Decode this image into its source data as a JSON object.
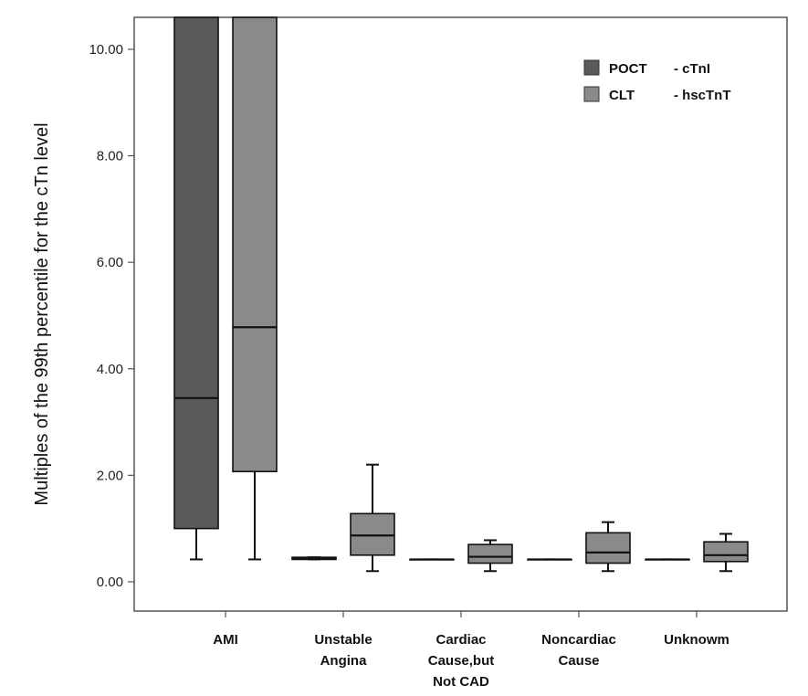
{
  "chart_data": {
    "type": "boxplot",
    "title": "",
    "xlabel": "",
    "ylabel": "Multiples of the 99th percentile for the cTn level",
    "ylim": [
      -0.55,
      10.6
    ],
    "yticks": [
      0,
      2,
      4,
      6,
      8,
      10
    ],
    "ytick_labels": [
      "0.00",
      "2.00",
      "4.00",
      "6.00",
      "8.00",
      "10.00"
    ],
    "categories": [
      [
        "AMI"
      ],
      [
        "Unstable",
        "Angina"
      ],
      [
        "Cardiac",
        "Cause,but",
        "Not CAD"
      ],
      [
        "Noncardiac",
        "Cause"
      ],
      [
        "Unknowm"
      ]
    ],
    "series": [
      {
        "name": "POCT",
        "assay": "- cTnI",
        "color": "#5a5a5a",
        "boxes": [
          {
            "whisker_low": 0.42,
            "q1": 1.0,
            "median": 3.45,
            "q3": 10.6,
            "whisker_high": null
          },
          {
            "whisker_low": 0.42,
            "q1": 0.42,
            "median": 0.44,
            "q3": 0.46,
            "whisker_high": 0.46
          },
          {
            "whisker_low": 0.42,
            "q1": 0.42,
            "median": 0.42,
            "q3": 0.42,
            "whisker_high": 0.42
          },
          {
            "whisker_low": 0.42,
            "q1": 0.42,
            "median": 0.42,
            "q3": 0.42,
            "whisker_high": 0.42
          },
          {
            "whisker_low": 0.42,
            "q1": 0.42,
            "median": 0.42,
            "q3": 0.42,
            "whisker_high": 0.42
          }
        ]
      },
      {
        "name": "CLT",
        "assay": "- hscTnT",
        "color": "#8a8a8a",
        "boxes": [
          {
            "whisker_low": 0.42,
            "q1": 2.07,
            "median": 4.78,
            "q3": 10.6,
            "whisker_high": null
          },
          {
            "whisker_low": 0.2,
            "q1": 0.5,
            "median": 0.87,
            "q3": 1.28,
            "whisker_high": 2.2
          },
          {
            "whisker_low": 0.2,
            "q1": 0.35,
            "median": 0.47,
            "q3": 0.7,
            "whisker_high": 0.78
          },
          {
            "whisker_low": 0.2,
            "q1": 0.35,
            "median": 0.55,
            "q3": 0.92,
            "whisker_high": 1.12
          },
          {
            "whisker_low": 0.2,
            "q1": 0.38,
            "median": 0.5,
            "q3": 0.75,
            "whisker_high": 0.9
          }
        ]
      }
    ],
    "legend_position": "top-right",
    "grid": false
  }
}
